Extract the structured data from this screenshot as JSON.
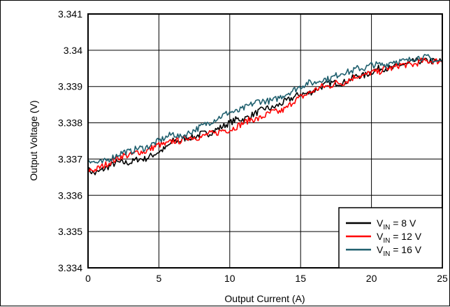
{
  "chart_data": {
    "type": "line",
    "xlabel": "Output Current (A)",
    "ylabel": "Output Voltage (V)",
    "xlim": [
      0,
      25
    ],
    "ylim": [
      3.334,
      3.341
    ],
    "x_ticks": [
      "0",
      "5",
      "10",
      "15",
      "20",
      "25"
    ],
    "y_ticks": [
      "3.334",
      "3.335",
      "3.336",
      "3.337",
      "3.338",
      "3.339",
      "3.34",
      "3.341"
    ],
    "grid": true,
    "legend_position": "bottom-right",
    "series": [
      {
        "name": "V_IN = 8 V",
        "legend": {
          "main": "V",
          "sub": "IN",
          "rest": " = 8 V"
        },
        "color": "#000000",
        "x": [
          0,
          0.5,
          1,
          1.5,
          2,
          2.5,
          3,
          3.5,
          4,
          4.5,
          5,
          5.5,
          6,
          6.5,
          7,
          7.5,
          8,
          8.5,
          9,
          9.5,
          10,
          10.5,
          11,
          11.5,
          12,
          12.5,
          13,
          13.5,
          14,
          14.5,
          15,
          15.5,
          16,
          16.5,
          17,
          17.5,
          18,
          18.5,
          19,
          19.5,
          20,
          20.5,
          21,
          21.5,
          22,
          22.5,
          23,
          23.5,
          24,
          24.5,
          25
        ],
        "y": [
          3.3367,
          3.3366,
          3.3367,
          3.3368,
          3.3369,
          3.3369,
          3.3369,
          3.337,
          3.337,
          3.3371,
          3.3372,
          3.3373,
          3.3375,
          3.3375,
          3.3376,
          3.3376,
          3.3377,
          3.3377,
          3.3378,
          3.3379,
          3.338,
          3.3381,
          3.3381,
          3.3382,
          3.3383,
          3.3384,
          3.3384,
          3.3385,
          3.3386,
          3.3387,
          3.3388,
          3.3388,
          3.3389,
          3.339,
          3.3391,
          3.3391,
          3.3391,
          3.3392,
          3.3393,
          3.3393,
          3.3394,
          3.3395,
          3.3395,
          3.3395,
          3.3396,
          3.3396,
          3.3397,
          3.3397,
          3.3397,
          3.3397,
          3.3397
        ]
      },
      {
        "name": "V_IN = 12 V",
        "legend": {
          "main": "V",
          "sub": "IN",
          "rest": " = 12 V"
        },
        "color": "#ff0000",
        "x": [
          0,
          0.5,
          1,
          1.5,
          2,
          2.5,
          3,
          3.5,
          4,
          4.5,
          5,
          5.5,
          6,
          6.5,
          7,
          7.5,
          8,
          8.5,
          9,
          9.5,
          10,
          10.5,
          11,
          11.5,
          12,
          12.5,
          13,
          13.5,
          14,
          14.5,
          15,
          15.5,
          16,
          16.5,
          17,
          17.5,
          18,
          18.5,
          19,
          19.5,
          20,
          20.5,
          21,
          21.5,
          22,
          22.5,
          23,
          23.5,
          24,
          24.5,
          25
        ],
        "y": [
          3.3367,
          3.3367,
          3.3368,
          3.3369,
          3.337,
          3.3371,
          3.3371,
          3.3372,
          3.3372,
          3.3373,
          3.3374,
          3.3374,
          3.3375,
          3.3375,
          3.3376,
          3.3376,
          3.3376,
          3.3377,
          3.3377,
          3.3378,
          3.3378,
          3.3379,
          3.338,
          3.3381,
          3.3381,
          3.3382,
          3.3383,
          3.3383,
          3.3384,
          3.3386,
          3.3387,
          3.3388,
          3.3389,
          3.339,
          3.339,
          3.3391,
          3.3391,
          3.3392,
          3.3393,
          3.3393,
          3.3394,
          3.3394,
          3.3395,
          3.3395,
          3.3396,
          3.3396,
          3.3396,
          3.3397,
          3.3397,
          3.3397,
          3.3397
        ]
      },
      {
        "name": "V_IN = 16 V",
        "legend": {
          "main": "V",
          "sub": "IN",
          "rest": " = 16 V"
        },
        "color": "#1f5f6e",
        "x": [
          0,
          0.5,
          1,
          1.5,
          2,
          2.5,
          3,
          3.5,
          4,
          4.5,
          5,
          5.5,
          6,
          6.5,
          7,
          7.5,
          8,
          8.5,
          9,
          9.5,
          10,
          10.5,
          11,
          11.5,
          12,
          12.5,
          13,
          13.5,
          14,
          14.5,
          15,
          15.5,
          16,
          16.5,
          17,
          17.5,
          18,
          18.5,
          19,
          19.5,
          20,
          20.5,
          21,
          21.5,
          22,
          22.5,
          23,
          23.5,
          24,
          24.5,
          25
        ],
        "y": [
          3.337,
          3.3369,
          3.3369,
          3.337,
          3.3371,
          3.3372,
          3.3372,
          3.3373,
          3.3373,
          3.3374,
          3.3375,
          3.3376,
          3.3377,
          3.3376,
          3.3377,
          3.3378,
          3.3379,
          3.338,
          3.3381,
          3.3382,
          3.3383,
          3.3383,
          3.3384,
          3.3385,
          3.3386,
          3.3386,
          3.3386,
          3.3387,
          3.3388,
          3.3389,
          3.339,
          3.3391,
          3.3391,
          3.3392,
          3.3392,
          3.3393,
          3.3394,
          3.3394,
          3.3395,
          3.3395,
          3.3396,
          3.3396,
          3.3396,
          3.3397,
          3.3397,
          3.3397,
          3.3398,
          3.3398,
          3.3398,
          3.3397,
          3.3397
        ]
      }
    ]
  }
}
